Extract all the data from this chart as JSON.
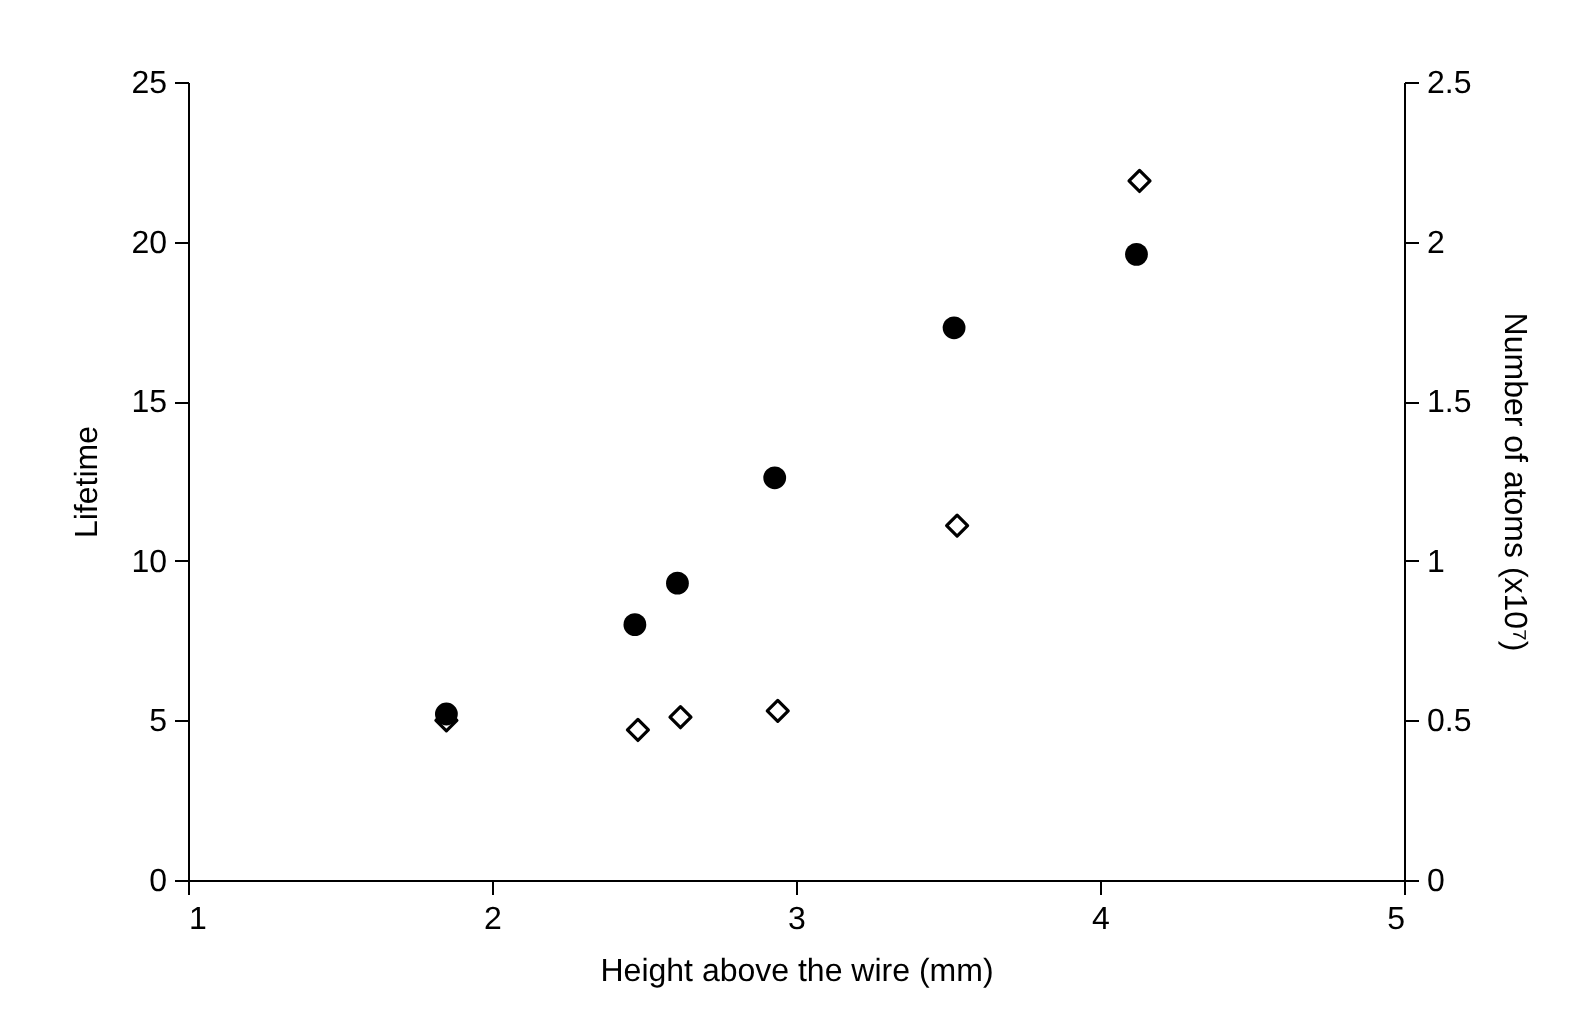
{
  "chart_data": {
    "type": "scatter",
    "xlabel": "Height above the wire (mm)",
    "ylabel": "Lifetime",
    "y2label": "Number of atoms (x10⁷)",
    "xlim": [
      1,
      5
    ],
    "xticks": [
      1,
      2,
      3,
      4,
      5
    ],
    "ylim": [
      0,
      25
    ],
    "yticks": [
      0,
      5,
      10,
      15,
      20,
      25
    ],
    "y2lim": [
      0,
      2.5
    ],
    "y2ticks": [
      0,
      0.5,
      1,
      1.5,
      2,
      2.5
    ],
    "grid": false,
    "series": [
      {
        "color": "#000000",
        "marker": "circle",
        "x": [
          1.85,
          2.47,
          2.61,
          2.93,
          3.52,
          4.12
        ],
        "values": [
          5.2,
          8.0,
          9.3,
          12.6,
          17.3,
          19.6
        ]
      },
      {
        "color": "#000000",
        "marker": "diamond",
        "axis": "y2",
        "x": [
          1.85,
          2.48,
          2.62,
          2.94,
          3.53,
          4.13
        ],
        "values": [
          0.5,
          0.47,
          0.51,
          0.53,
          1.11,
          2.19
        ]
      }
    ]
  }
}
